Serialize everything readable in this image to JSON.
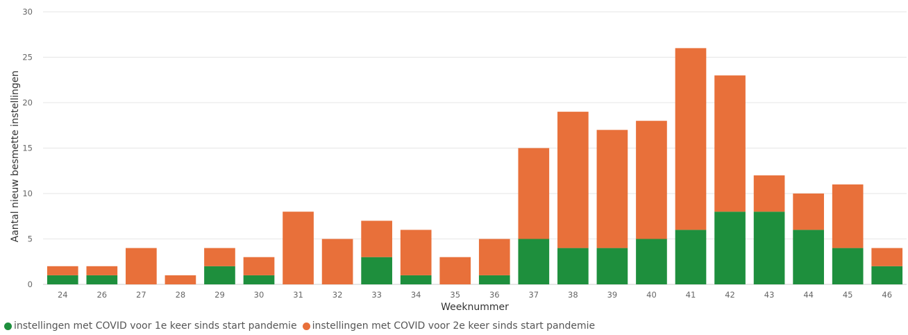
{
  "chart_data": {
    "type": "bar",
    "stacked": true,
    "title": "",
    "xlabel": "Weeknummer",
    "ylabel": "Aantal nieuw besmette instellingen",
    "ylim": [
      0,
      30
    ],
    "yticks": [
      0,
      5,
      10,
      15,
      20,
      25,
      30
    ],
    "grid": true,
    "legend_position": "bottom-left",
    "categories": [
      "24",
      "26",
      "27",
      "28",
      "29",
      "30",
      "31",
      "32",
      "33",
      "34",
      "35",
      "36",
      "37",
      "38",
      "39",
      "40",
      "41",
      "42",
      "43",
      "44",
      "45",
      "46"
    ],
    "series": [
      {
        "name": "instellingen met COVID voor 1e keer sinds start pandemie",
        "color": "#1e8f3d",
        "values": [
          1,
          1,
          0,
          0,
          2,
          1,
          0,
          0,
          3,
          1,
          0,
          1,
          5,
          4,
          4,
          5,
          6,
          8,
          8,
          6,
          4,
          2
        ]
      },
      {
        "name": "instellingen met COVID voor 2e keer sinds start pandemie",
        "color": "#e8703a",
        "values": [
          1,
          1,
          4,
          1,
          2,
          2,
          8,
          5,
          4,
          5,
          3,
          4,
          10,
          15,
          13,
          13,
          20,
          15,
          4,
          4,
          7,
          2
        ]
      }
    ]
  }
}
